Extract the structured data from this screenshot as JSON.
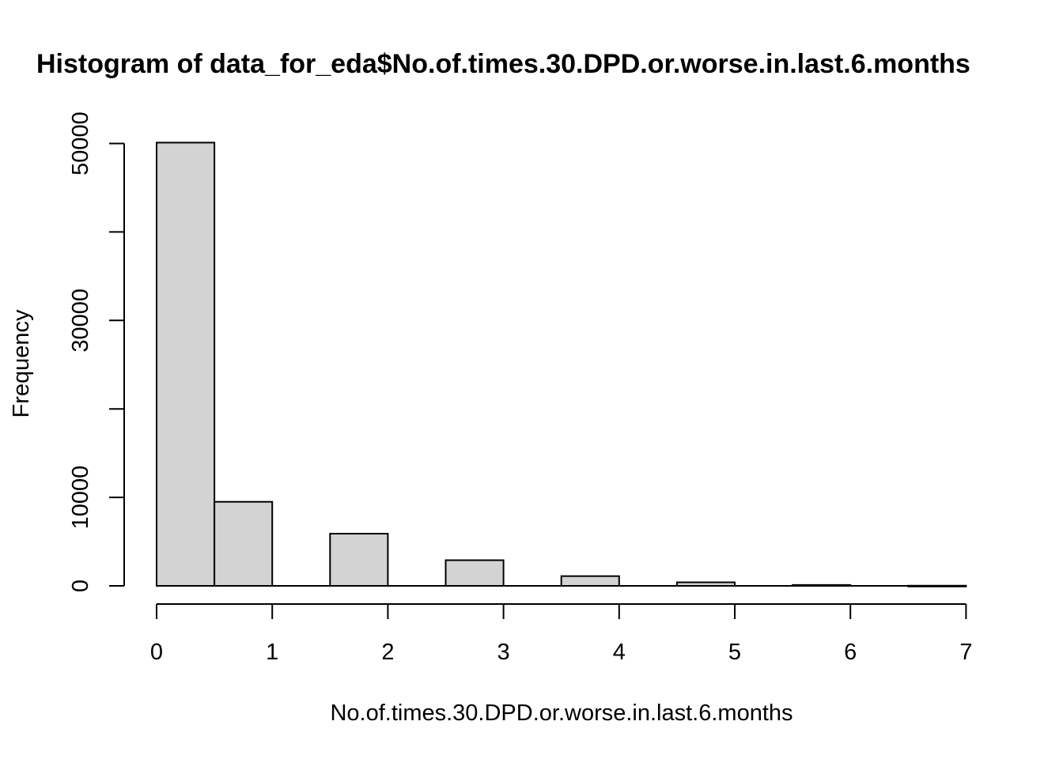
{
  "chart_data": {
    "type": "bar",
    "title": "Histogram of data_for_eda$No.of.times.30.DPD.or.worse.in.last.6.months",
    "xlabel": "No.of.times.30.DPD.or.worse.in.last.6.months",
    "ylabel": "Frequency",
    "bins": [
      {
        "start": 0.0,
        "end": 0.5,
        "count": 50100
      },
      {
        "start": 0.5,
        "end": 1.0,
        "count": 9500
      },
      {
        "start": 1.0,
        "end": 1.5,
        "count": 0
      },
      {
        "start": 1.5,
        "end": 2.0,
        "count": 5900
      },
      {
        "start": 2.0,
        "end": 2.5,
        "count": 0
      },
      {
        "start": 2.5,
        "end": 3.0,
        "count": 2900
      },
      {
        "start": 3.0,
        "end": 3.5,
        "count": 0
      },
      {
        "start": 3.5,
        "end": 4.0,
        "count": 1100
      },
      {
        "start": 4.0,
        "end": 4.5,
        "count": 0
      },
      {
        "start": 4.5,
        "end": 5.0,
        "count": 400
      },
      {
        "start": 5.0,
        "end": 5.5,
        "count": 0
      },
      {
        "start": 5.5,
        "end": 6.0,
        "count": 100
      },
      {
        "start": 6.0,
        "end": 6.5,
        "count": 0
      },
      {
        "start": 6.5,
        "end": 7.0,
        "count": 20
      }
    ],
    "xlim": [
      0,
      7
    ],
    "ylim": [
      0,
      50000
    ],
    "x_ticks": [
      0,
      1,
      2,
      3,
      4,
      5,
      6,
      7
    ],
    "y_ticks": [
      0,
      10000,
      20000,
      30000,
      40000,
      50000
    ],
    "y_tick_labels": [
      "0",
      "10000",
      "",
      "30000",
      "",
      "50000"
    ],
    "grid": false,
    "colors": {
      "bar_fill": "#d3d3d3",
      "bar_stroke": "#000000"
    }
  }
}
